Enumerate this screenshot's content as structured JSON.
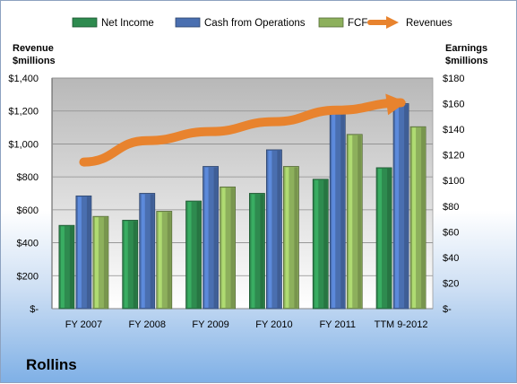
{
  "company": "Rollins",
  "chart_data": {
    "type": "bar",
    "categories": [
      "FY 2007",
      "FY 2008",
      "FY 2009",
      "FY 2010",
      "FY 2011",
      "TTM 9-2012"
    ],
    "left_axis_title": [
      "Revenue",
      "$millions"
    ],
    "right_axis_title": [
      "Earnings",
      "$millions"
    ],
    "left_ticks": [
      "$-",
      "$200",
      "$400",
      "$600",
      "$800",
      "$1,000",
      "$1,200",
      "$1,400"
    ],
    "right_ticks": [
      "$-",
      "$20",
      "$40",
      "$60",
      "$80",
      "$100",
      "$120",
      "$140",
      "$160",
      "$180"
    ],
    "ylim_left": [
      0,
      1400
    ],
    "ylim_right": [
      0,
      180
    ],
    "legend_position": "top",
    "series": [
      {
        "name": "Net Income",
        "axis": "right",
        "kind": "bar",
        "color": "#2e8b4f",
        "values": [
          65,
          69,
          84,
          90,
          101,
          110
        ]
      },
      {
        "name": "Cash from Operations",
        "axis": "right",
        "kind": "bar",
        "color": "#4a6fb0",
        "values": [
          88,
          90,
          111,
          124,
          154,
          160
        ]
      },
      {
        "name": "FCF",
        "axis": "right",
        "kind": "bar",
        "color": "#8db05c",
        "values": [
          72,
          76,
          95,
          111,
          136,
          142
        ]
      },
      {
        "name": "Revenues",
        "axis": "left",
        "kind": "arrow-line",
        "color": "#e8832e",
        "values": [
          890,
          1020,
          1075,
          1135,
          1205,
          1250
        ]
      }
    ]
  }
}
